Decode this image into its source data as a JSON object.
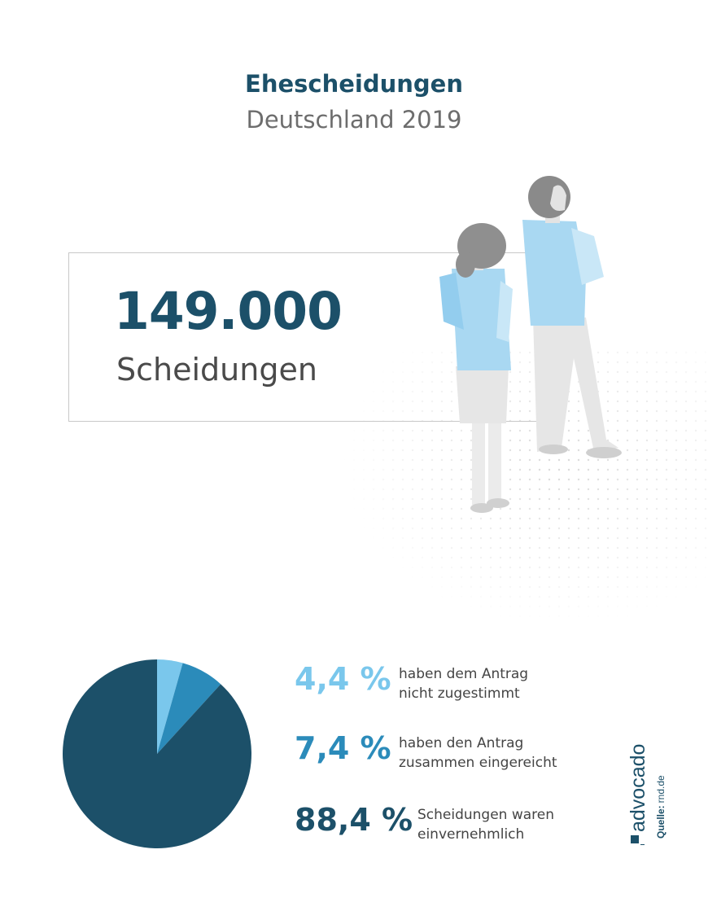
{
  "header": {
    "title": "Ehescheidungen",
    "subtitle": "Deutschland 2019"
  },
  "highlight": {
    "value": "149.000",
    "label": "Scheidungen"
  },
  "chart_data": {
    "type": "pie",
    "title": "",
    "slices": [
      {
        "value": 4.4,
        "label": "4,4 %",
        "description_line1": "haben dem Antrag",
        "description_line2": "nicht zugestimmt",
        "color": "#7ac7ec"
      },
      {
        "value": 7.4,
        "label": "7,4 %",
        "description_line1": "haben den Antrag",
        "description_line2": "zusammen eingereicht",
        "color": "#2b8bba"
      },
      {
        "value": 88.4,
        "label": "88,4 %",
        "description_line1": "Scheidungen waren",
        "description_line2": "einvernehmlich",
        "color": "#1c5069"
      }
    ]
  },
  "footer": {
    "brand": "advocado",
    "source_label": "Quelle:",
    "source": "rnd.de"
  }
}
